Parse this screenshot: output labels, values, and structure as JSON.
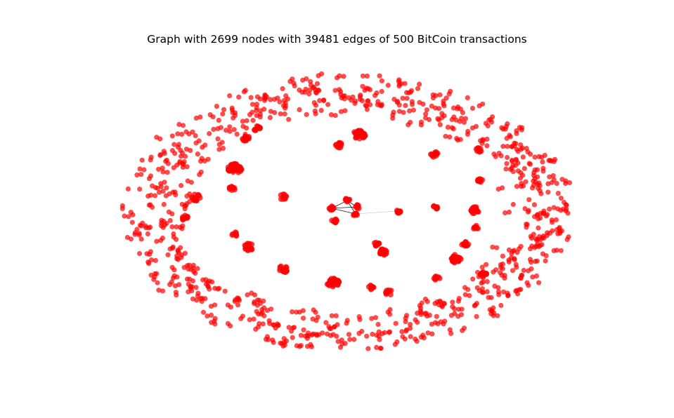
{
  "title": "Graph with 2699 nodes with 39481 edges of 500 BitCoin transactions",
  "node_color": "#ff0000",
  "edge_color": "#000000"
}
